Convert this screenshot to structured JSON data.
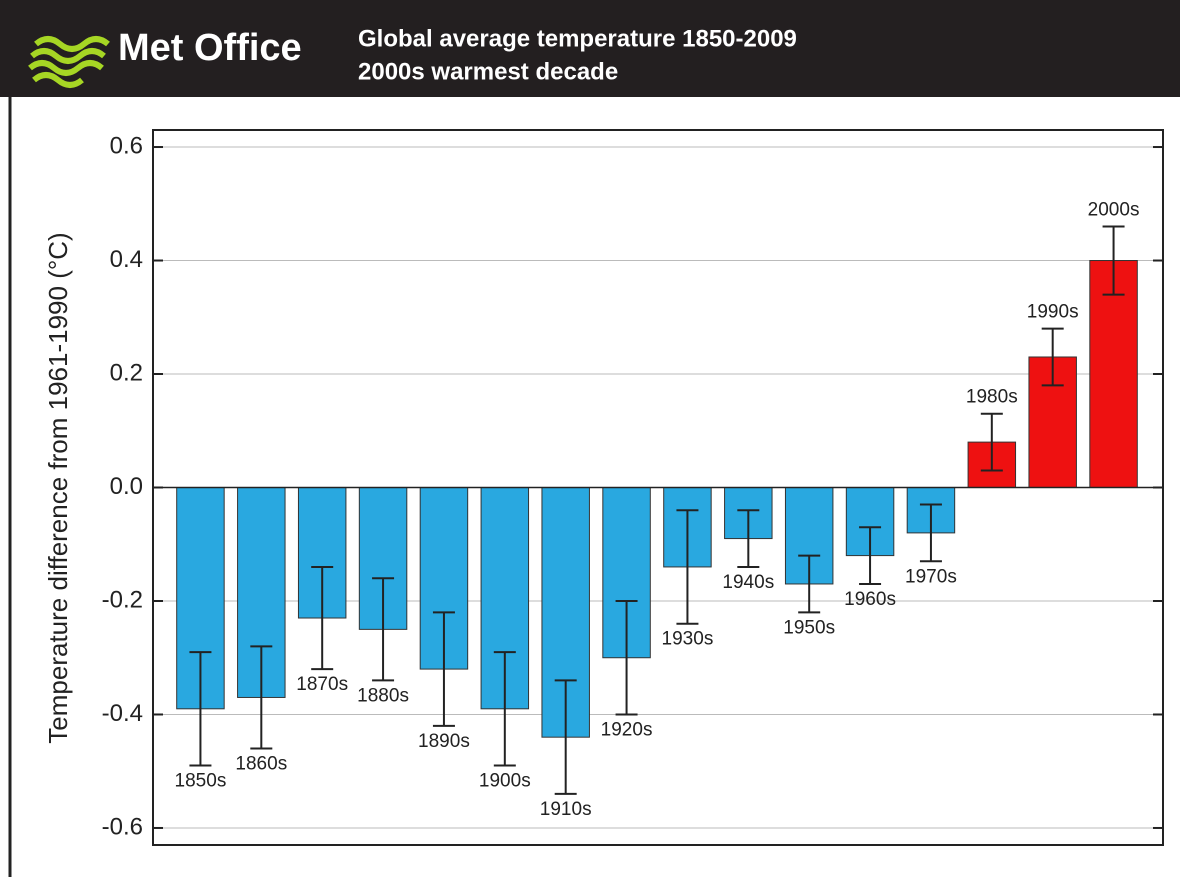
{
  "header": {
    "logo": "Met Office",
    "title": "Global average temperature 1850-2009",
    "subtitle": "2000s warmest decade"
  },
  "chart_data": {
    "type": "bar",
    "ylabel": "Temperature difference from 1961-1990 (°C)",
    "categories": [
      "1850s",
      "1860s",
      "1870s",
      "1880s",
      "1890s",
      "1900s",
      "1910s",
      "1920s",
      "1930s",
      "1940s",
      "1950s",
      "1960s",
      "1970s",
      "1980s",
      "1990s",
      "2000s"
    ],
    "values": [
      -0.39,
      -0.37,
      -0.23,
      -0.25,
      -0.32,
      -0.39,
      -0.44,
      -0.3,
      -0.14,
      -0.09,
      -0.17,
      -0.12,
      -0.08,
      0.08,
      0.23,
      0.4
    ],
    "errors": [
      0.1,
      0.09,
      0.09,
      0.09,
      0.1,
      0.1,
      0.1,
      0.1,
      0.1,
      0.05,
      0.05,
      0.05,
      0.05,
      0.05,
      0.05,
      0.06
    ],
    "colors": {
      "negative": "#29a8e0",
      "positive": "#ee1111"
    },
    "ylim": [
      -0.63,
      0.63
    ],
    "yticks": [
      0.6,
      0.4,
      0.2,
      {
        "value": 0,
        "label": "0.0"
      },
      -0.2,
      -0.4,
      -0.6
    ],
    "grid": true
  }
}
